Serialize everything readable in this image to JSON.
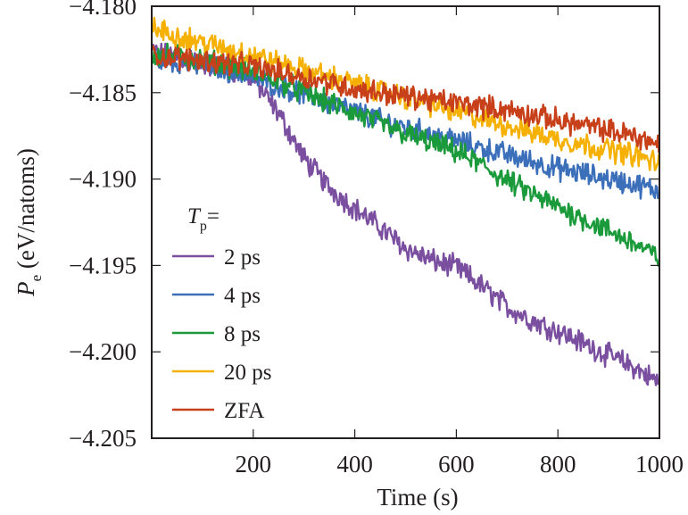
{
  "chart_data": {
    "type": "line",
    "title": "",
    "xlabel": "Time (s)",
    "ylabel": {
      "symbol": "P",
      "subscript": "e",
      "units": " (eV/natoms)"
    },
    "xlim": [
      0,
      1000
    ],
    "ylim": [
      -4.205,
      -4.18
    ],
    "xticks": [
      200,
      400,
      600,
      800,
      1000
    ],
    "xtick_labels": [
      "200",
      "400",
      "600",
      "800",
      "1000"
    ],
    "yticks": [
      -4.18,
      -4.185,
      -4.19,
      -4.195,
      -4.2,
      -4.205
    ],
    "ytick_labels": [
      "−4.180",
      "−4.185",
      "−4.190",
      "−4.195",
      "−4.200",
      "−4.205"
    ],
    "grid": false,
    "legend": {
      "placement": "bottom-left",
      "title_symbol": "T",
      "title_subscript": "p",
      "title_suffix": "="
    },
    "x": [
      0,
      50,
      100,
      150,
      200,
      250,
      300,
      350,
      400,
      450,
      500,
      550,
      600,
      650,
      700,
      750,
      800,
      850,
      900,
      950,
      1000
    ],
    "series": [
      {
        "name": "2 ps",
        "color": "#7b4fa0",
        "values": [
          -4.1826,
          -4.183,
          -4.1833,
          -4.1836,
          -4.1842,
          -4.1862,
          -4.1888,
          -4.1905,
          -4.1917,
          -4.1928,
          -4.194,
          -4.1947,
          -4.1951,
          -4.1962,
          -4.1974,
          -4.1982,
          -4.1988,
          -4.1995,
          -4.2002,
          -4.2009,
          -4.2018
        ]
      },
      {
        "name": "4 ps",
        "color": "#3b6fba",
        "values": [
          -4.183,
          -4.1832,
          -4.1834,
          -4.1837,
          -4.1841,
          -4.1846,
          -4.1851,
          -4.1856,
          -4.1861,
          -4.1866,
          -4.187,
          -4.1874,
          -4.1878,
          -4.1882,
          -4.1886,
          -4.189,
          -4.1894,
          -4.1897,
          -4.19,
          -4.1903,
          -4.1907
        ]
      },
      {
        "name": "8 ps",
        "color": "#1a9a3a",
        "values": [
          -4.1828,
          -4.1829,
          -4.1831,
          -4.1834,
          -4.1838,
          -4.1843,
          -4.185,
          -4.1856,
          -4.1862,
          -4.1868,
          -4.1874,
          -4.1879,
          -4.1884,
          -4.1892,
          -4.1901,
          -4.1909,
          -4.1916,
          -4.1923,
          -4.193,
          -4.1937,
          -4.1946
        ]
      },
      {
        "name": "20 ps",
        "color": "#f5b000",
        "values": [
          -4.1813,
          -4.1817,
          -4.1821,
          -4.1825,
          -4.1828,
          -4.1833,
          -4.1837,
          -4.1841,
          -4.1845,
          -4.1849,
          -4.1853,
          -4.1857,
          -4.1861,
          -4.1865,
          -4.1869,
          -4.1873,
          -4.1877,
          -4.188,
          -4.1883,
          -4.1886,
          -4.1891
        ]
      },
      {
        "name": "ZFA",
        "color": "#c8401a",
        "values": [
          -4.1828,
          -4.183,
          -4.1831,
          -4.1833,
          -4.1835,
          -4.1838,
          -4.1841,
          -4.1844,
          -4.1848,
          -4.185,
          -4.1852,
          -4.1854,
          -4.1856,
          -4.1858,
          -4.186,
          -4.1863,
          -4.1866,
          -4.1869,
          -4.1872,
          -4.1875,
          -4.188
        ]
      }
    ]
  }
}
